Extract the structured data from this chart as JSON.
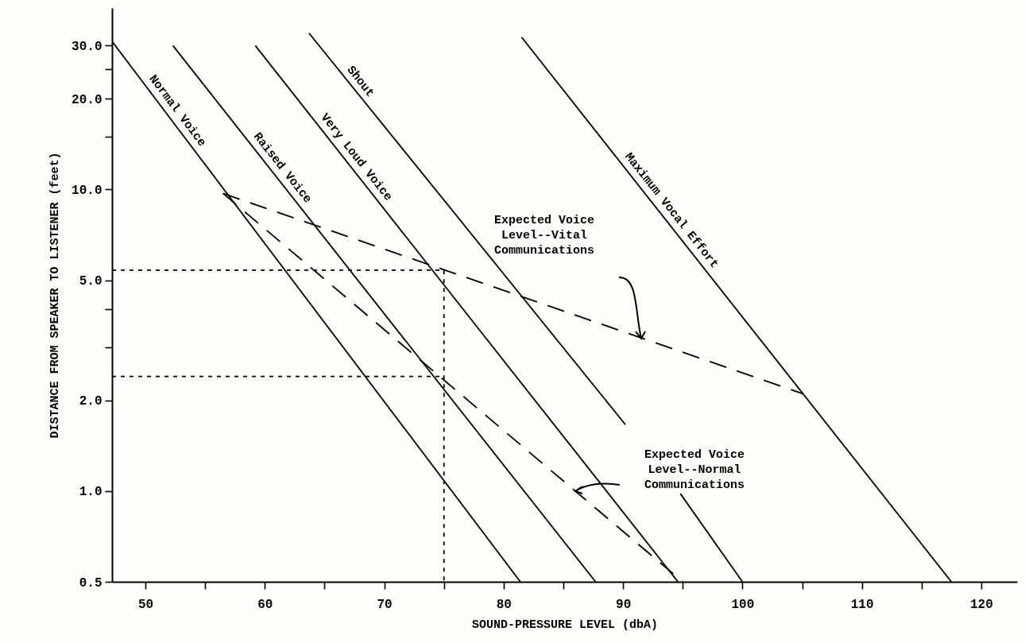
{
  "chart_data": {
    "type": "line",
    "xlabel": "SOUND-PRESSURE LEVEL (dbA)",
    "ylabel": "DISTANCE FROM SPEAKER TO LISTENER (feet)",
    "log": "y",
    "grid": false,
    "marker": "none",
    "xlim": [
      47.2,
      123
    ],
    "xticks": [
      50,
      {
        "value": 55,
        "label": null
      },
      60,
      {
        "value": 65,
        "label": null
      },
      70,
      {
        "value": 75,
        "label": null
      },
      80,
      {
        "value": 85,
        "label": null
      },
      90,
      {
        "value": 95,
        "label": null
      },
      100,
      {
        "value": 105,
        "label": null
      },
      110,
      {
        "value": 115,
        "label": null
      },
      120
    ],
    "ylim": [
      0.5,
      40
    ],
    "yticks": [
      {
        "value": 0.5,
        "label": "0.5"
      },
      {
        "value": 1,
        "label": "1.0"
      },
      {
        "value": 2,
        "label": "2.0"
      },
      {
        "value": 3,
        "label": null
      },
      {
        "value": 4,
        "label": null
      },
      {
        "value": 5,
        "label": "5.0"
      },
      {
        "value": 10,
        "label": "10.0"
      },
      {
        "value": 15,
        "label": null
      },
      {
        "value": 20,
        "label": "20.0"
      },
      {
        "value": 25,
        "label": null
      },
      {
        "value": 30,
        "label": "30.0"
      }
    ],
    "series": [
      {
        "name": "Normal Voice",
        "color": "#000000",
        "line_style": "solid",
        "x": [
          47.2,
          81.4
        ],
        "values": [
          31,
          0.5
        ]
      },
      {
        "name": "Raised Voice",
        "color": "#000000",
        "line_style": "solid",
        "x": [
          52.3,
          87.7
        ],
        "values": [
          30,
          0.5
        ]
      },
      {
        "name": "Very Loud Voice",
        "color": "#000000",
        "line_style": "solid",
        "x": [
          59.2,
          94.6
        ],
        "values": [
          30,
          0.5
        ]
      },
      {
        "name": "Shout",
        "color": "#000000",
        "line_style": "solid",
        "x": [
          63.7,
          90.2,
          92.5,
          94.8,
          100
        ],
        "values": [
          33,
          1.66,
          null,
          0.98,
          0.5
        ]
      },
      {
        "name": "Maximum Vocal Effort",
        "color": "#000000",
        "line_style": "solid",
        "x": [
          81.5,
          117.5
        ],
        "values": [
          32,
          0.5
        ]
      },
      {
        "color": "#000000",
        "line_style": "dashed",
        "x": [
          56.5,
          105.1
        ],
        "values": [
          9.7,
          2.1
        ]
      },
      {
        "color": "#000000",
        "line_style": "dashed",
        "x": [
          56.5,
          95
        ],
        "values": [
          9.7,
          0.5
        ]
      },
      {
        "color": "#000000",
        "line_style": "dotted",
        "x": [
          47.2,
          75,
          75
        ],
        "values": [
          5.4,
          5.4,
          0.5
        ]
      },
      {
        "color": "#000000",
        "line_style": "dotted",
        "x": [
          47.2,
          75
        ],
        "values": [
          2.4,
          2.4
        ]
      }
    ],
    "annotations": [
      "Expected Voice Level--Vital Communications",
      "Expected Voice Level--Normal Communications"
    ]
  }
}
